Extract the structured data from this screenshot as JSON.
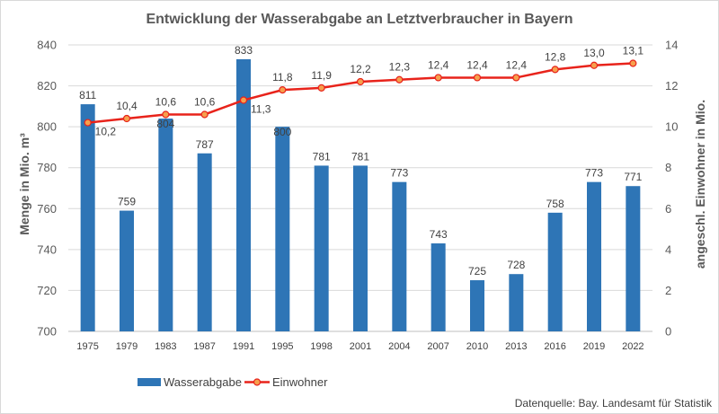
{
  "chart_data": {
    "type": "bar",
    "title": "Entwicklung der Wasserabgabe an Letztverbraucher in Bayern",
    "categories": [
      "1975",
      "1979",
      "1983",
      "1987",
      "1991",
      "1995",
      "1998",
      "2001",
      "2004",
      "2007",
      "2010",
      "2013",
      "2016",
      "2019",
      "2022"
    ],
    "series": [
      {
        "name": "Wasserabgabe",
        "type": "bar",
        "axis": "left",
        "color": "#2e75b6",
        "values": [
          811,
          759,
          804,
          787,
          833,
          800,
          781,
          781,
          773,
          743,
          725,
          728,
          758,
          773,
          771
        ]
      },
      {
        "name": "Einwohner",
        "type": "line",
        "axis": "right",
        "color": "#e8231b",
        "marker_color": "#f6a04d",
        "values": [
          10.2,
          10.4,
          10.6,
          10.6,
          11.3,
          11.8,
          11.9,
          12.2,
          12.3,
          12.4,
          12.4,
          12.4,
          12.8,
          13.0,
          13.1
        ],
        "labels": [
          "10,2",
          "10,4",
          "10,6",
          "10,6",
          "11,3",
          "11,8",
          "11,9",
          "12,2",
          "12,3",
          "12,4",
          "12,4",
          "12,4",
          "12,8",
          "13,0",
          "13,1"
        ]
      }
    ],
    "ylabel": "Menge in Mio. m³",
    "ylim": [
      700,
      840
    ],
    "yticks": [
      "700",
      "720",
      "740",
      "760",
      "780",
      "800",
      "820",
      "840"
    ],
    "y2label": "angeschl. Einwohner in Mio.",
    "y2lim": [
      0,
      14
    ],
    "y2ticks": [
      "0",
      "2",
      "4",
      "6",
      "8",
      "10",
      "12",
      "14"
    ],
    "grid": true,
    "legend_position": "bottom",
    "source": "Datenquelle: Bay. Landesamt für Statistik"
  }
}
